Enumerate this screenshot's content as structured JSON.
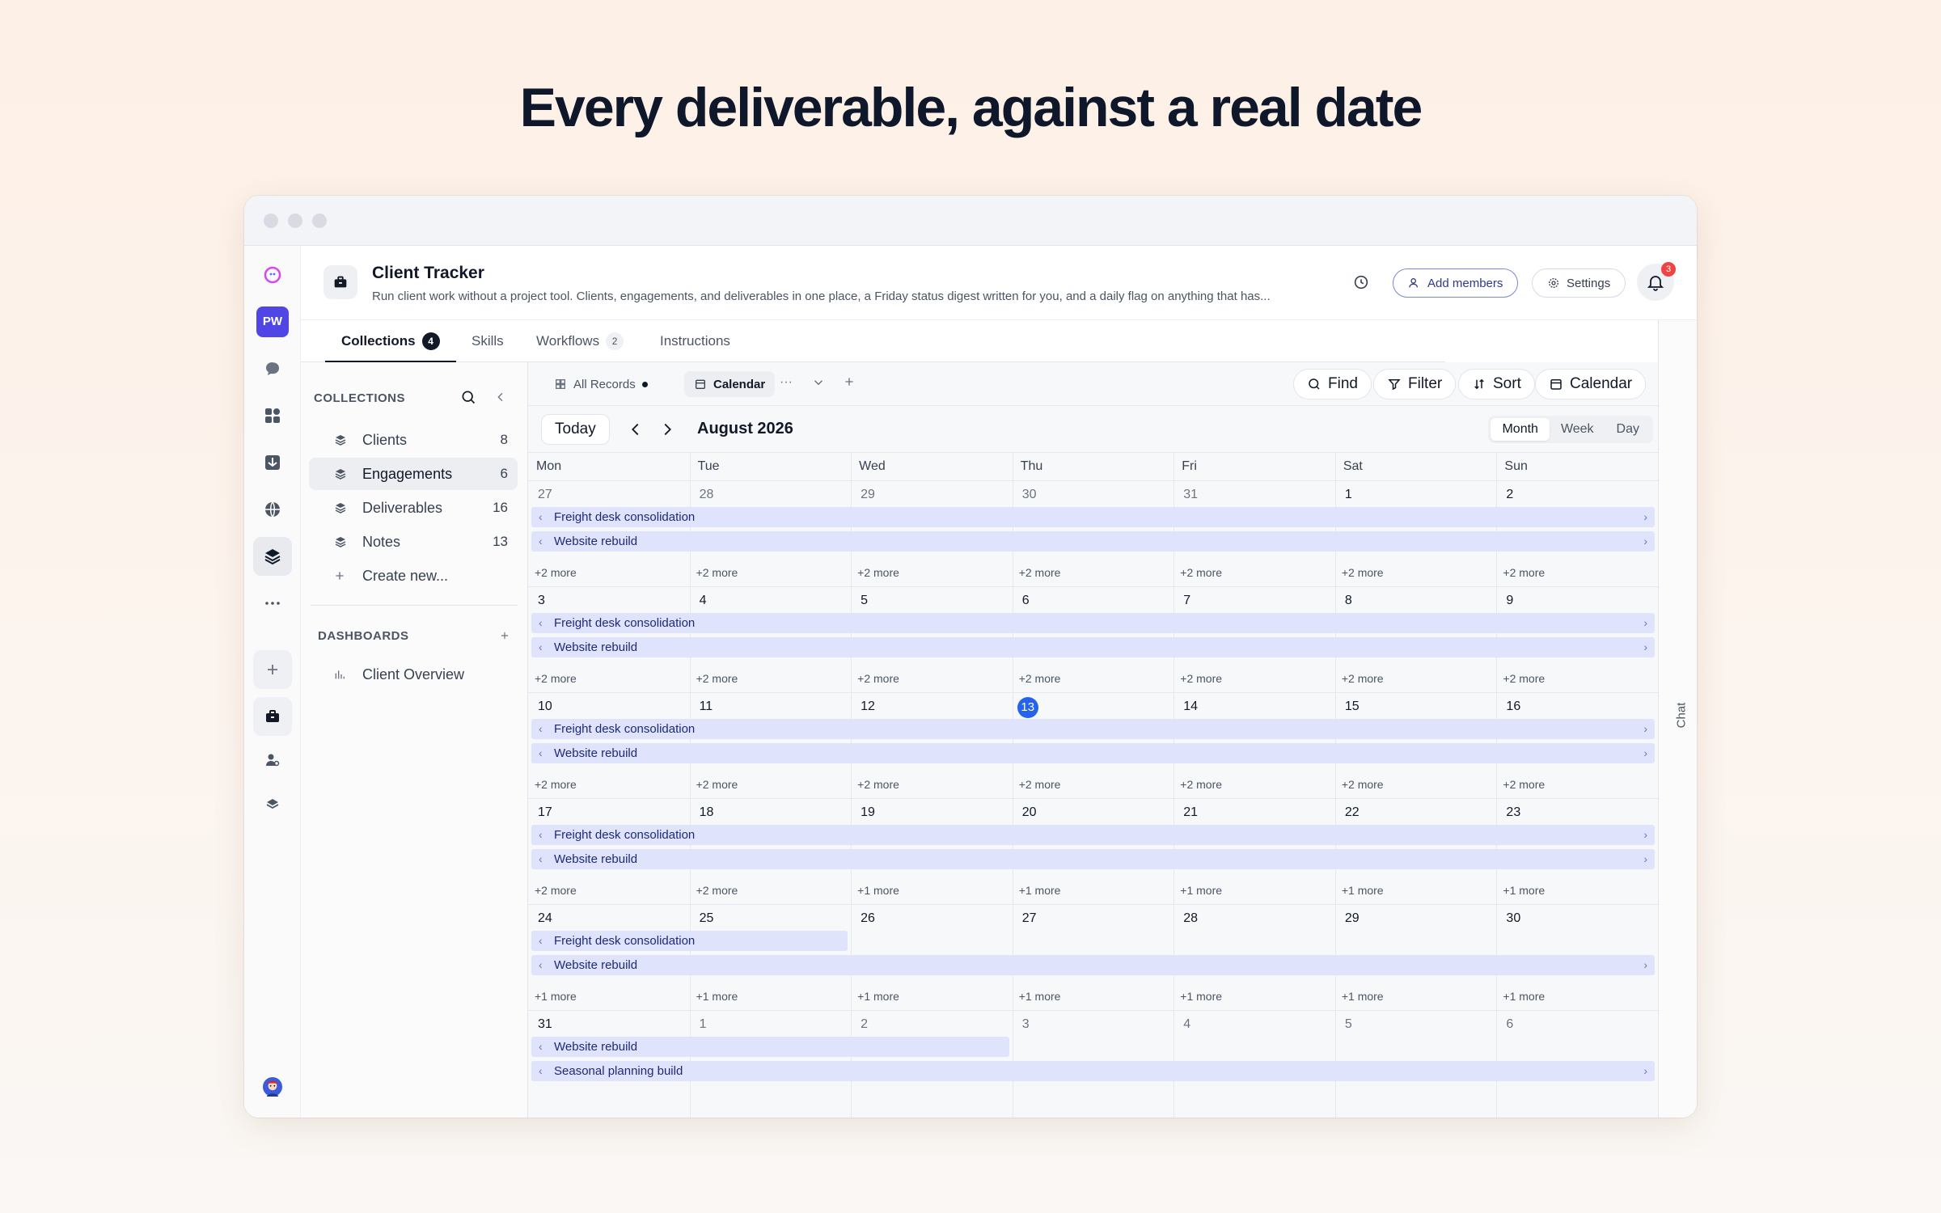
{
  "hero": {
    "title": "Every deliverable, against a real date"
  },
  "app": {
    "title": "Client Tracker",
    "description": "Run client work without a project tool. Clients, engagements, and deliverables in one place, a Friday status digest written for you, and a daily flag on anything that has...",
    "workspace_initials": "PW",
    "add_members": "Add members",
    "settings": "Settings",
    "notification_count": "3"
  },
  "tabs": [
    {
      "label": "Collections",
      "count": "4"
    },
    {
      "label": "Skills",
      "count": ""
    },
    {
      "label": "Workflows",
      "count": "2"
    },
    {
      "label": "Instructions",
      "count": ""
    }
  ],
  "sidebar": {
    "collections_heading": "COLLECTIONS",
    "items": [
      {
        "label": "Clients",
        "count": "8"
      },
      {
        "label": "Engagements",
        "count": "6"
      },
      {
        "label": "Deliverables",
        "count": "16"
      },
      {
        "label": "Notes",
        "count": "13"
      }
    ],
    "create_new": "Create new...",
    "dashboards_heading": "DASHBOARDS",
    "dashboards": [
      {
        "label": "Client Overview"
      }
    ]
  },
  "toolbar": {
    "views": [
      {
        "label": "All Records"
      },
      {
        "label": "Calendar"
      }
    ],
    "find": "Find",
    "filter": "Filter",
    "sort": "Sort",
    "calendar": "Calendar"
  },
  "calendar": {
    "today": "Today",
    "month": "August 2026",
    "modes": [
      "Month",
      "Week",
      "Day"
    ],
    "active_mode": "Month",
    "weekdays": [
      "Mon",
      "Tue",
      "Wed",
      "Thu",
      "Fri",
      "Sat",
      "Sun"
    ],
    "today_date": "13",
    "weeks": [
      {
        "days": [
          {
            "n": "27",
            "muted": true
          },
          {
            "n": "28",
            "muted": true
          },
          {
            "n": "29",
            "muted": true
          },
          {
            "n": "30",
            "muted": true
          },
          {
            "n": "31",
            "muted": true
          },
          {
            "n": "1"
          },
          {
            "n": "2"
          }
        ],
        "events": [
          {
            "title": "Freight desk consolidation",
            "start": 0,
            "end": 6
          },
          {
            "title": "Website rebuild",
            "start": 0,
            "end": 6
          }
        ],
        "more": [
          "+2 more",
          "+2 more",
          "+2 more",
          "+2 more",
          "+2 more",
          "+2 more",
          "+2 more"
        ]
      },
      {
        "days": [
          {
            "n": "3"
          },
          {
            "n": "4"
          },
          {
            "n": "5"
          },
          {
            "n": "6"
          },
          {
            "n": "7"
          },
          {
            "n": "8"
          },
          {
            "n": "9"
          }
        ],
        "events": [
          {
            "title": "Freight desk consolidation",
            "start": 0,
            "end": 6
          },
          {
            "title": "Website rebuild",
            "start": 0,
            "end": 6
          }
        ],
        "more": [
          "+2 more",
          "+2 more",
          "+2 more",
          "+2 more",
          "+2 more",
          "+2 more",
          "+2 more"
        ]
      },
      {
        "days": [
          {
            "n": "10"
          },
          {
            "n": "11"
          },
          {
            "n": "12"
          },
          {
            "n": "13",
            "today": true
          },
          {
            "n": "14"
          },
          {
            "n": "15"
          },
          {
            "n": "16"
          }
        ],
        "events": [
          {
            "title": "Freight desk consolidation",
            "start": 0,
            "end": 6
          },
          {
            "title": "Website rebuild",
            "start": 0,
            "end": 6
          }
        ],
        "more": [
          "+2 more",
          "+2 more",
          "+2 more",
          "+2 more",
          "+2 more",
          "+2 more",
          "+2 more"
        ]
      },
      {
        "days": [
          {
            "n": "17"
          },
          {
            "n": "18"
          },
          {
            "n": "19"
          },
          {
            "n": "20"
          },
          {
            "n": "21"
          },
          {
            "n": "22"
          },
          {
            "n": "23"
          }
        ],
        "events": [
          {
            "title": "Freight desk consolidation",
            "start": 0,
            "end": 6
          },
          {
            "title": "Website rebuild",
            "start": 0,
            "end": 6
          }
        ],
        "more": [
          "+2 more",
          "+2 more",
          "+1 more",
          "+1 more",
          "+1 more",
          "+1 more",
          "+1 more"
        ]
      },
      {
        "days": [
          {
            "n": "24"
          },
          {
            "n": "25"
          },
          {
            "n": "26"
          },
          {
            "n": "27"
          },
          {
            "n": "28"
          },
          {
            "n": "29"
          },
          {
            "n": "30"
          }
        ],
        "events": [
          {
            "title": "Freight desk consolidation",
            "start": 0,
            "end": 1,
            "row": 0
          },
          {
            "title": "Website rebuild",
            "start": 0,
            "end": 6,
            "row": 1
          }
        ],
        "more": [
          "+1 more",
          "+1 more",
          "+1 more",
          "+1 more",
          "+1 more",
          "+1 more",
          "+1 more"
        ]
      },
      {
        "days": [
          {
            "n": "31"
          },
          {
            "n": "1",
            "muted": true
          },
          {
            "n": "2",
            "muted": true
          },
          {
            "n": "3",
            "muted": true
          },
          {
            "n": "4",
            "muted": true
          },
          {
            "n": "5",
            "muted": true
          },
          {
            "n": "6",
            "muted": true
          }
        ],
        "events": [
          {
            "title": "Website rebuild",
            "start": 0,
            "end": 2,
            "row": 0
          },
          {
            "title": "Seasonal planning build",
            "start": 0,
            "end": 6,
            "row": 1
          }
        ],
        "more": []
      }
    ]
  },
  "chat": {
    "label": "Chat"
  }
}
